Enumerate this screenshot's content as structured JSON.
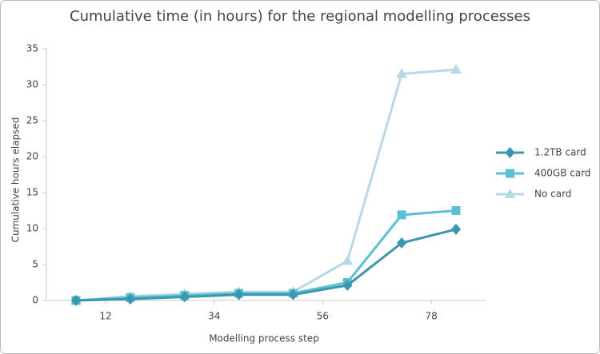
{
  "chart_data": {
    "type": "line",
    "title": "Cumulative time (in hours) for the regional modelling processes",
    "x_label": "Modelling process step",
    "y_label": "Cumulative hours elapsed",
    "x": [
      6,
      17,
      28,
      39,
      50,
      61,
      72,
      83
    ],
    "series": [
      {
        "name": "1.2TB card",
        "color": "#3a97ad",
        "marker": "diamond",
        "values": [
          0,
          0.2,
          0.5,
          0.8,
          0.8,
          2.1,
          8,
          9.9
        ]
      },
      {
        "name": "400GB card",
        "color": "#5bc0d6",
        "marker": "square",
        "values": [
          0,
          0.4,
          0.7,
          1.0,
          1.0,
          2.5,
          11.9,
          12.5
        ]
      },
      {
        "name": "No card",
        "color": "#b7d9e6",
        "marker": "triangle",
        "values": [
          0,
          0.6,
          0.9,
          1.2,
          1.2,
          5.5,
          31.5,
          32.1
        ]
      }
    ],
    "xlim": [
      0,
      89
    ],
    "xticks": [
      12,
      34,
      56,
      78
    ],
    "ylim": [
      0,
      35
    ],
    "yticks": [
      0,
      5,
      10,
      15,
      20,
      25,
      30,
      35
    ],
    "grid": false,
    "legend": "right"
  }
}
